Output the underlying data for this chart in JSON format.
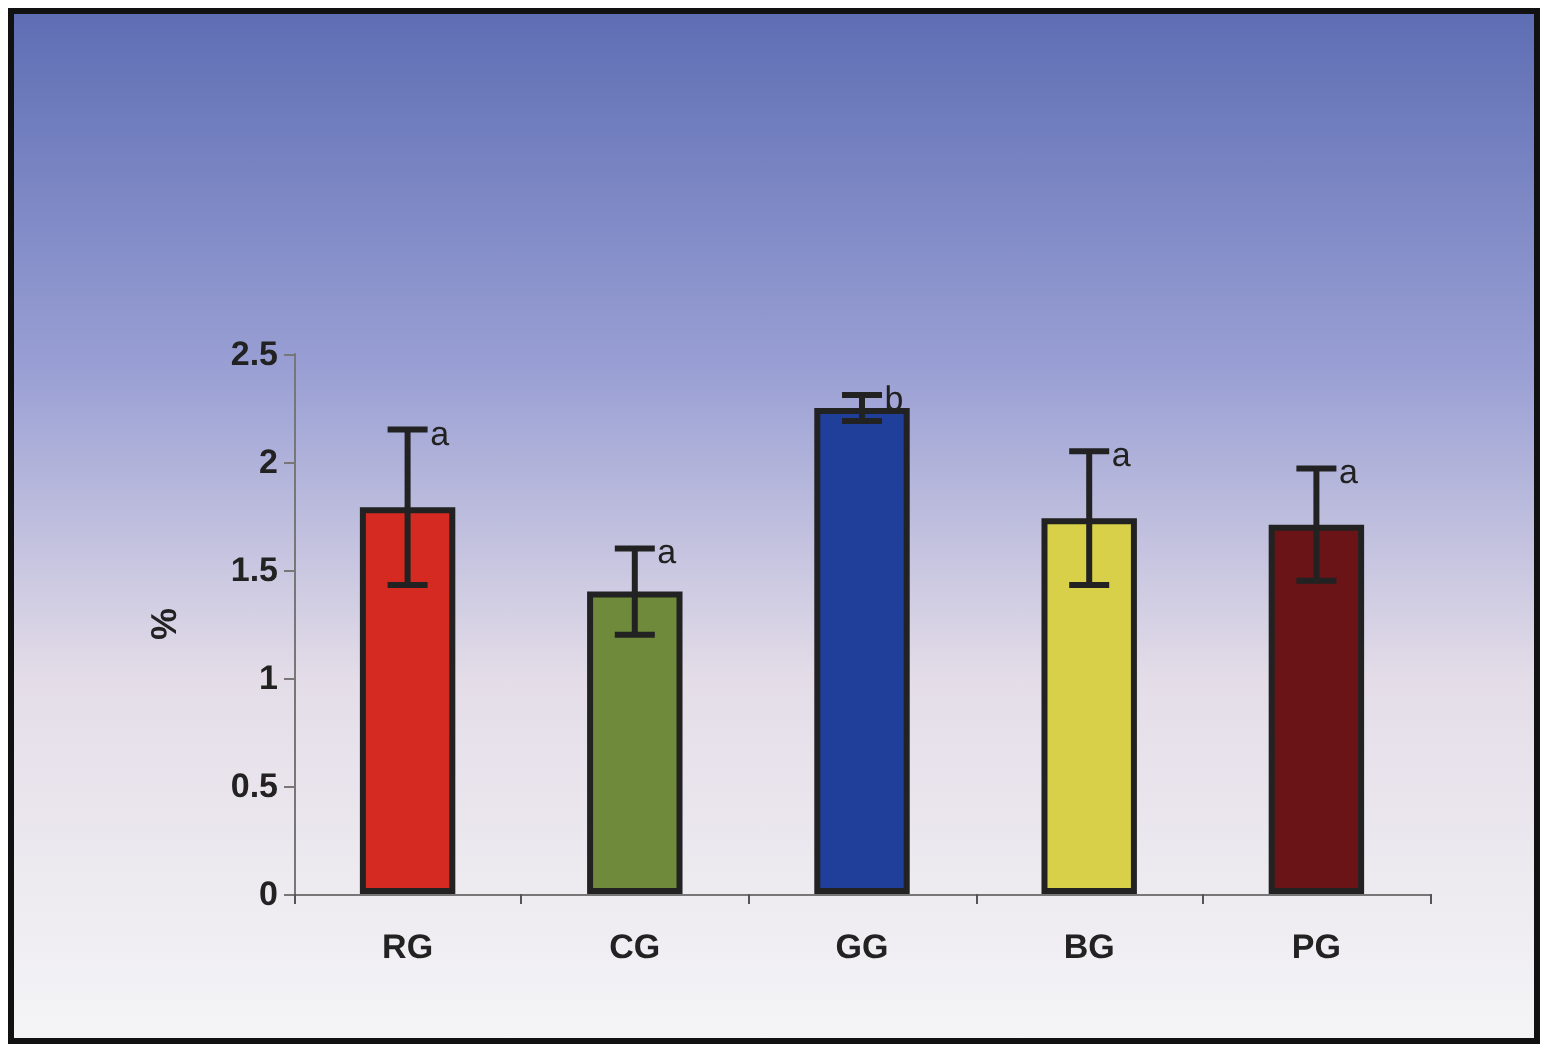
{
  "chart_data": {
    "type": "bar",
    "ylabel": "%",
    "categories": [
      "RG",
      "CG",
      "GG",
      "BG",
      "PG"
    ],
    "values": [
      1.79,
      1.4,
      2.25,
      1.74,
      1.71
    ],
    "colors": [
      "#d42a22",
      "#6e8a3a",
      "#1f3f9a",
      "#d8d048",
      "#6a1418"
    ],
    "errors": [
      0.36,
      0.2,
      0.06,
      0.31,
      0.26
    ],
    "ylim": [
      0,
      2.5
    ],
    "yticks": [
      0,
      0.5,
      1,
      1.5,
      2,
      2.5
    ],
    "grid": false,
    "annotations": [
      {
        "text": "a",
        "x": "RG",
        "y": 2.15
      },
      {
        "text": "a",
        "x": "CG",
        "y": 1.6
      },
      {
        "text": "b",
        "x": "GG",
        "y": 2.31
      },
      {
        "text": "a",
        "x": "BG",
        "y": 2.05
      },
      {
        "text": "a",
        "x": "PG",
        "y": 1.97
      }
    ]
  }
}
